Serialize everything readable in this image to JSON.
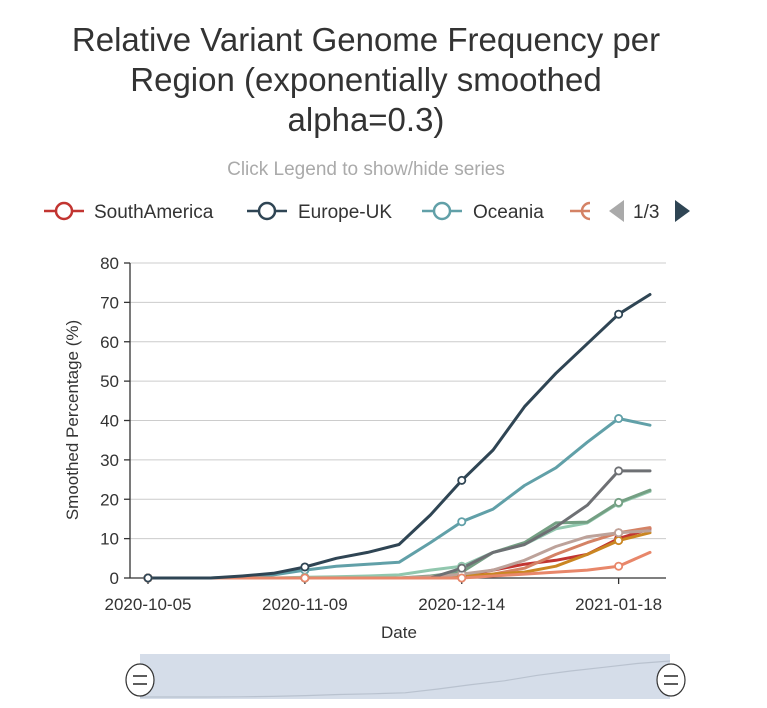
{
  "title_lines": [
    "Relative Variant Genome Frequency per",
    "Region (exponentially smoothed",
    "alpha=0.3)"
  ],
  "subtitle": "Click Legend to show/hide series",
  "legend": {
    "items": [
      {
        "label": "SouthAmerica",
        "color": "#c23531"
      },
      {
        "label": "Europe-UK",
        "color": "#2f4554"
      },
      {
        "label": "Oceania",
        "color": "#61a0a8"
      }
    ],
    "truncated_color": "#d48265",
    "page_text": "1/3"
  },
  "colors": {
    "prev_arrow": "#aaaaaa",
    "next_arrow": "#2f4554",
    "zoom_fill": "#d5dde9",
    "zoom_handle": "#ffffff"
  },
  "chart_data": {
    "type": "line",
    "xlabel": "Date",
    "ylabel": "Smoothed Percentage (%)",
    "x_tick_labels": [
      "2020-10-05",
      "2020-11-09",
      "2020-12-14",
      "2021-01-18"
    ],
    "x": [
      "2020-10-05",
      "2020-10-12",
      "2020-10-19",
      "2020-10-26",
      "2020-11-02",
      "2020-11-09",
      "2020-11-16",
      "2020-11-23",
      "2020-11-30",
      "2020-12-07",
      "2020-12-14",
      "2020-12-21",
      "2020-12-28",
      "2021-01-04",
      "2021-01-11",
      "2021-01-18",
      "2021-01-25"
    ],
    "ylim": [
      0,
      80
    ],
    "y_ticks": [
      0,
      10,
      20,
      30,
      40,
      50,
      60,
      70,
      80
    ],
    "grid": true,
    "series": [
      {
        "name": "SouthAmerica",
        "color": "#c23531",
        "values": [
          0,
          0,
          0,
          0,
          0,
          0,
          0,
          0,
          0,
          0,
          0.5,
          2,
          3.5,
          4.5,
          6,
          10,
          12.5
        ]
      },
      {
        "name": "Europe-UK",
        "color": "#2f4554",
        "values": [
          0,
          0,
          0,
          0.5,
          1.2,
          2.8,
          5,
          6.5,
          8.5,
          16,
          24.8,
          32.5,
          43.5,
          52,
          59.5,
          67,
          72
        ]
      },
      {
        "name": "Oceania",
        "color": "#61a0a8",
        "values": [
          0,
          0,
          0,
          0.3,
          0.8,
          2,
          3,
          3.5,
          4,
          9,
          14.3,
          17.5,
          23.5,
          28,
          34.5,
          40.5,
          38.8
        ]
      },
      {
        "name": "",
        "color": "#d48265",
        "values": [
          0,
          0,
          0,
          0,
          0,
          0,
          0,
          0,
          0,
          0,
          0,
          1,
          2.5,
          6,
          9,
          11.5,
          12.8
        ]
      },
      {
        "name": "",
        "color": "#91c7ae",
        "values": [
          0,
          0,
          0,
          0,
          0,
          0.2,
          0.3,
          0.5,
          0.8,
          2,
          3,
          6.5,
          8.5,
          12.5,
          14,
          19,
          22
        ]
      },
      {
        "name": "",
        "color": "#749f83",
        "values": [
          0,
          0,
          0,
          0,
          0,
          0,
          0,
          0,
          0,
          0.5,
          1.5,
          6.5,
          9,
          14,
          14.2,
          19.2,
          22.3
        ]
      },
      {
        "name": "",
        "color": "#ca8622",
        "values": [
          0,
          0,
          0,
          0,
          0,
          0,
          0,
          0,
          0,
          0,
          0.5,
          1,
          1.5,
          3,
          6,
          9.5,
          11.5
        ]
      },
      {
        "name": "",
        "color": "#bda29a",
        "values": [
          0,
          0,
          0,
          0,
          0,
          0,
          0,
          0,
          0,
          0.3,
          1,
          2,
          4.5,
          8,
          10.5,
          11.5,
          12
        ]
      },
      {
        "name": "",
        "color": "#6e7074",
        "values": [
          0,
          0,
          0,
          0,
          0,
          0,
          0,
          0,
          0,
          0,
          2.5,
          6.5,
          8.5,
          13,
          18.5,
          27.2,
          27.2
        ]
      },
      {
        "name": "",
        "color": "#e8876a",
        "values": [
          0,
          0,
          0,
          0,
          0,
          0,
          0,
          0,
          0,
          0,
          0,
          0.5,
          1,
          1.5,
          2,
          3,
          6.5
        ]
      }
    ],
    "marked_indices": [
      0,
      5,
      10,
      15
    ]
  }
}
